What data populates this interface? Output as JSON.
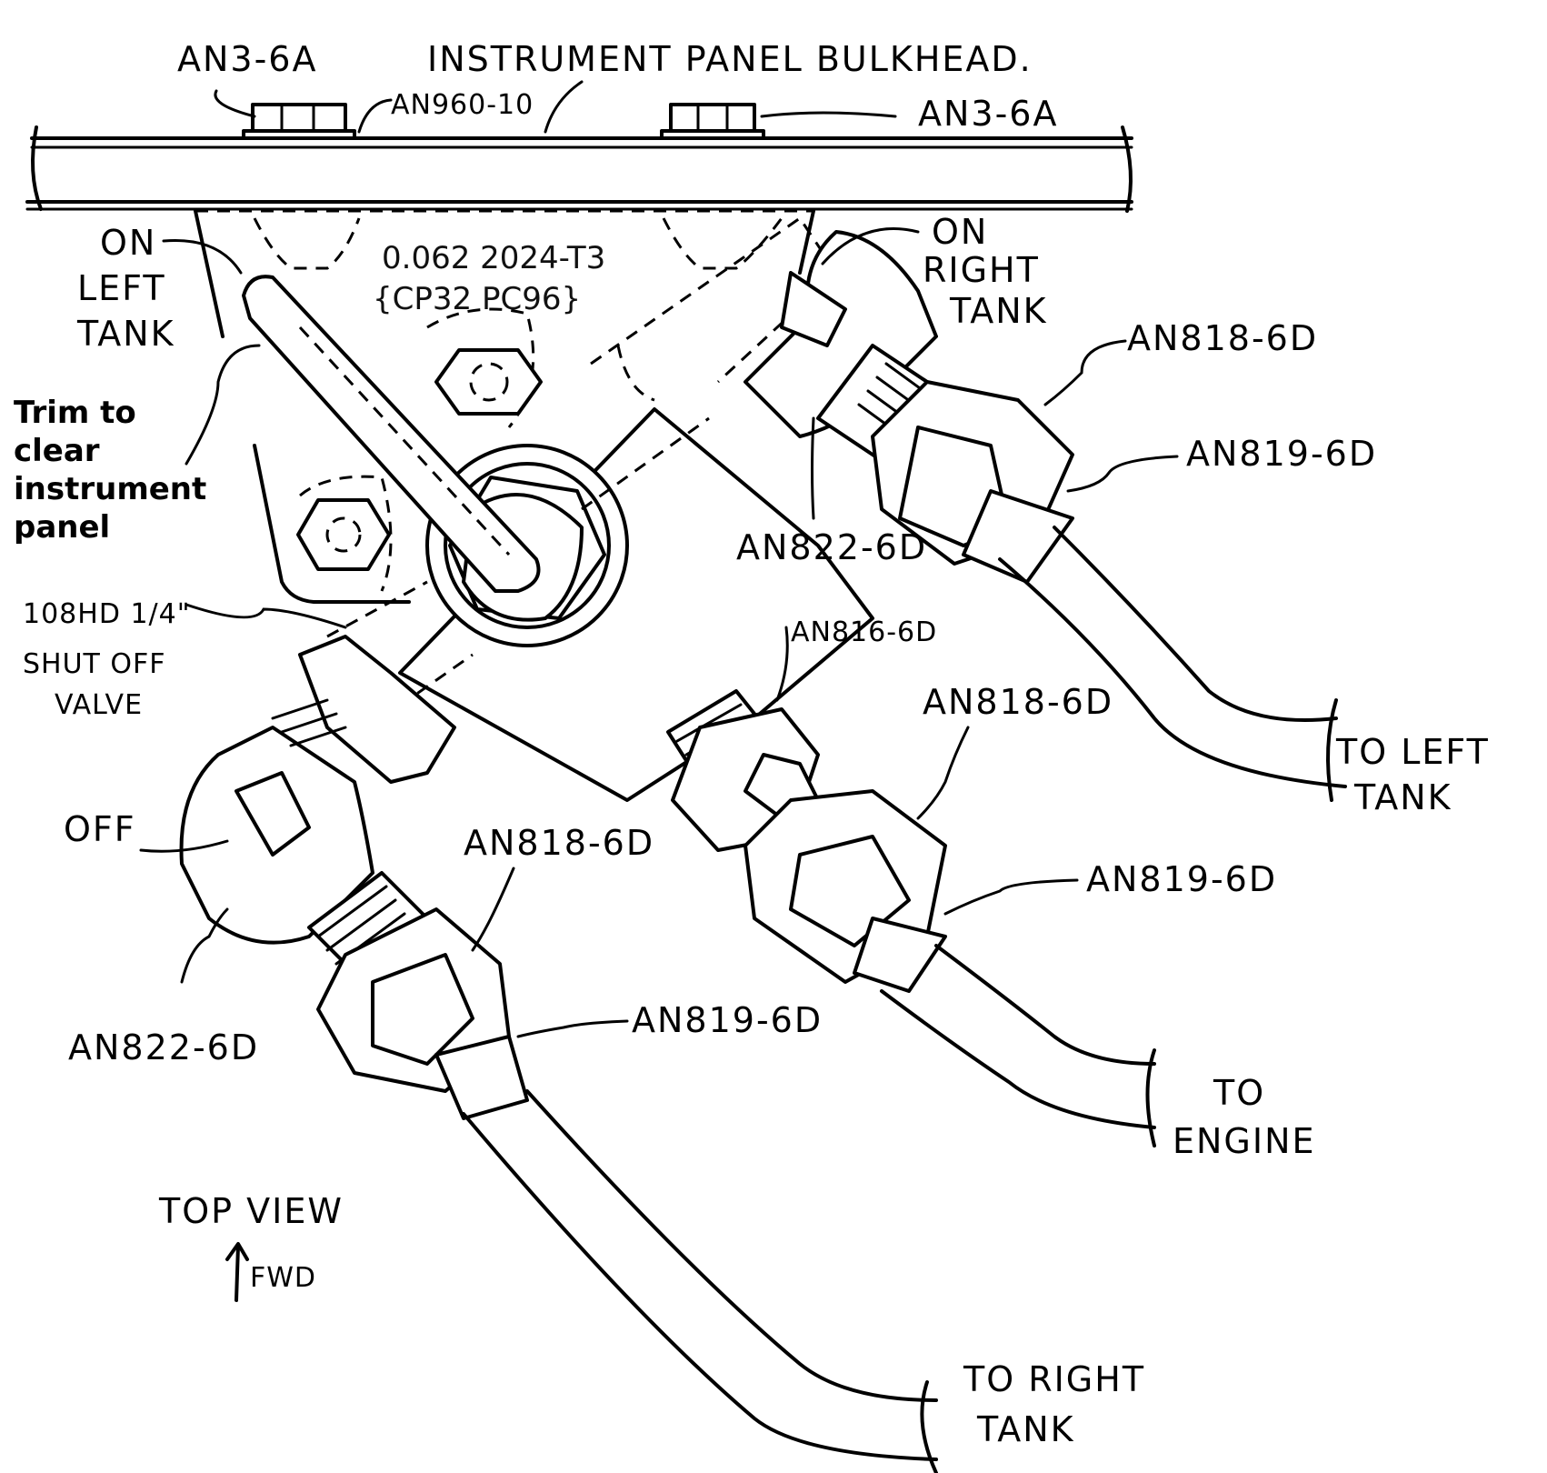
{
  "labels": {
    "bolt_left": "AN3-6A",
    "bulkhead": "INSTRUMENT PANEL BULKHEAD.",
    "washer": "AN960-10",
    "bolt_right": "AN3-6A",
    "on_left_tank": [
      "ON",
      "LEFT",
      "TANK"
    ],
    "on_right_tank": [
      "ON",
      "RIGHT",
      "TANK"
    ],
    "material": [
      "0.062 2024-T3",
      "{CP32 PC96}"
    ],
    "trim_note": [
      "Trim to",
      "clear",
      "instrument",
      "panel"
    ],
    "an818_top": "AN818-6D",
    "an819_top": "AN819-6D",
    "an822_top": "AN822-6D",
    "valve": [
      "108HD 1/4\"",
      "SHUT OFF",
      "VALVE"
    ],
    "an816": "AN816-6D",
    "an818_mid": "AN818-6D",
    "to_left_tank": [
      "TO LEFT",
      "TANK"
    ],
    "off": "OFF",
    "an818_low": "AN818-6D",
    "an819_mid": "AN819-6D",
    "an822_low": "AN822-6D",
    "an819_low": "AN819-6D",
    "to_engine": [
      "TO",
      "ENGINE"
    ],
    "top_view": "TOP VIEW",
    "fwd": "FWD",
    "to_right_tank": [
      "TO RIGHT",
      "TANK"
    ]
  }
}
